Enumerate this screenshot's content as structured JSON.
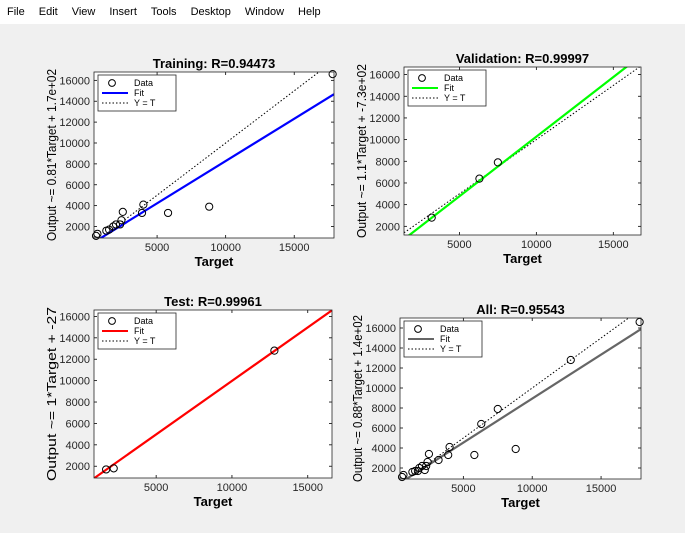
{
  "menu": [
    "File",
    "Edit",
    "View",
    "Insert",
    "Tools",
    "Desktop",
    "Window",
    "Help"
  ],
  "legend_labels": [
    "Data",
    "Fit",
    "Y = T"
  ],
  "chart_data": [
    {
      "type": "scatter",
      "title": "Training: R=0.94473",
      "xlabel": "Target",
      "ylabel": "Output ~= 0.81*Target + 1.7e+02",
      "xlim": [
        400,
        17900
      ],
      "ylim": [
        900,
        16800
      ],
      "xticks": [
        5000,
        10000,
        15000
      ],
      "yticks": [
        2000,
        4000,
        6000,
        8000,
        10000,
        12000,
        14000,
        16000
      ],
      "fit_color": "#0000ff",
      "fit": {
        "slope": 0.81,
        "intercept": 170
      },
      "points": [
        [
          550,
          1100
        ],
        [
          650,
          1300
        ],
        [
          1300,
          1600
        ],
        [
          1500,
          1700
        ],
        [
          1800,
          2000
        ],
        [
          2000,
          2200
        ],
        [
          2300,
          2200
        ],
        [
          2400,
          2600
        ],
        [
          2500,
          3400
        ],
        [
          3900,
          3300
        ],
        [
          4000,
          4100
        ],
        [
          5800,
          3300
        ],
        [
          8800,
          3900
        ],
        [
          17800,
          16600
        ]
      ],
      "legend": "top-left"
    },
    {
      "type": "scatter",
      "title": "Validation: R=0.99997",
      "xlabel": "Target",
      "ylabel": "Output ~= 1.1*Target + -7.3e+02",
      "xlim": [
        1400,
        16800
      ],
      "ylim": [
        1200,
        16700
      ],
      "xticks": [
        5000,
        10000,
        15000
      ],
      "yticks": [
        2000,
        4000,
        6000,
        8000,
        10000,
        12000,
        14000,
        16000
      ],
      "fit_color": "#00ff00",
      "fit": {
        "slope": 1.1,
        "intercept": -730
      },
      "points": [
        [
          3200,
          2800
        ],
        [
          6300,
          6400
        ],
        [
          7500,
          7900
        ]
      ],
      "legend": "top-left"
    },
    {
      "type": "scatter",
      "title": "Test: R=0.99961",
      "xlabel": "Target",
      "ylabel": "Output ~= 1*Target + -27",
      "xlim": [
        900,
        16600
      ],
      "ylim": [
        900,
        16600
      ],
      "xticks": [
        5000,
        10000,
        15000
      ],
      "yticks": [
        2000,
        4000,
        6000,
        8000,
        10000,
        12000,
        14000,
        16000
      ],
      "fit_color": "#ff0000",
      "fit": {
        "slope": 1.0,
        "intercept": -27
      },
      "points": [
        [
          1700,
          1700
        ],
        [
          2200,
          1800
        ],
        [
          12800,
          12800
        ]
      ],
      "legend": "top-left"
    },
    {
      "type": "scatter",
      "title": "All: R=0.95543",
      "xlabel": "Target",
      "ylabel": "Output ~= 0.88*Target + 1.4e+02",
      "xlim": [
        400,
        17900
      ],
      "ylim": [
        900,
        17000
      ],
      "xticks": [
        5000,
        10000,
        15000
      ],
      "yticks": [
        2000,
        4000,
        6000,
        8000,
        10000,
        12000,
        14000,
        16000
      ],
      "fit_color": "#666666",
      "fit": {
        "slope": 0.88,
        "intercept": 140
      },
      "points": [
        [
          550,
          1100
        ],
        [
          650,
          1300
        ],
        [
          1300,
          1600
        ],
        [
          1500,
          1700
        ],
        [
          1700,
          1700
        ],
        [
          1800,
          2000
        ],
        [
          2000,
          2200
        ],
        [
          2200,
          1800
        ],
        [
          2300,
          2200
        ],
        [
          2400,
          2600
        ],
        [
          2500,
          3400
        ],
        [
          3200,
          2800
        ],
        [
          3900,
          3300
        ],
        [
          4000,
          4100
        ],
        [
          5800,
          3300
        ],
        [
          6300,
          6400
        ],
        [
          7500,
          7900
        ],
        [
          8800,
          3900
        ],
        [
          12800,
          12800
        ],
        [
          17800,
          16600
        ]
      ],
      "legend": "top-left"
    }
  ]
}
